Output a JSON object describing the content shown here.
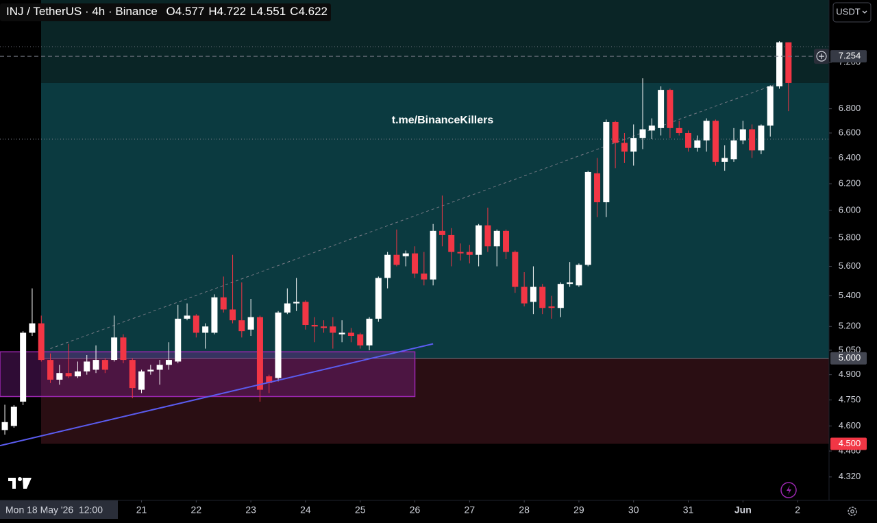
{
  "chart_data": {
    "type": "candlestick",
    "title": "INJ / TetherUS · 4h · Binance",
    "ohlc_legend": [
      {
        "label": "O",
        "value": 4.577
      },
      {
        "label": "H",
        "value": 4.722
      },
      {
        "label": "L",
        "value": 4.551
      },
      {
        "label": "C",
        "value": 4.622
      }
    ],
    "quote_button": "USDT",
    "watermark": "t.me/BinanceKillers",
    "crosshair_label": "Mon 18 May '26  12:00",
    "log_scale": true,
    "up_color": "#ffffff",
    "down_color": "#f23645",
    "xlim": [
      -0.53,
      90.45
    ],
    "ylim": [
      4.197,
      7.775
    ],
    "xticks": [
      {
        "value": 15,
        "label": "21"
      },
      {
        "value": 21,
        "label": "22"
      },
      {
        "value": 27,
        "label": "23"
      },
      {
        "value": 33,
        "label": "24"
      },
      {
        "value": 39,
        "label": "25"
      },
      {
        "value": 45,
        "label": "26"
      },
      {
        "value": 51,
        "label": "27"
      },
      {
        "value": 57,
        "label": "28"
      },
      {
        "value": 63,
        "label": "29"
      },
      {
        "value": 69,
        "label": "30"
      },
      {
        "value": 75,
        "label": "31"
      },
      {
        "value": 81,
        "label": "Jun"
      },
      {
        "value": 87,
        "label": "2"
      }
    ],
    "yticks": [
      {
        "value": 4.32,
        "label": "4.320"
      },
      {
        "value": 4.46,
        "label": "4.460"
      },
      {
        "value": 4.6,
        "label": "4.600"
      },
      {
        "value": 4.75,
        "label": "4.750"
      },
      {
        "value": 4.9,
        "label": "4.900"
      },
      {
        "value": 5.05,
        "label": "5.050"
      },
      {
        "value": 5.2,
        "label": "5.200"
      },
      {
        "value": 5.4,
        "label": "5.400"
      },
      {
        "value": 5.6,
        "label": "5.600"
      },
      {
        "value": 5.8,
        "label": "5.800"
      },
      {
        "value": 6.0,
        "label": "6.000"
      },
      {
        "value": 6.2,
        "label": "6.200"
      },
      {
        "value": 6.4,
        "label": "6.400"
      },
      {
        "value": 6.6,
        "label": "6.600"
      },
      {
        "value": 6.8,
        "label": "6.800"
      },
      {
        "value": 7.2,
        "label": "7.200"
      }
    ],
    "price_labels": [
      {
        "value": 7.254,
        "color": "#363a45"
      },
      {
        "value": 5.0,
        "label": "5.000",
        "color": "#434651"
      },
      {
        "value": 4.5,
        "label": "4.500",
        "color": "#f23645"
      }
    ],
    "zones": [
      {
        "top": 7.775,
        "bottom": 7.02,
        "color": "#0a2526"
      },
      {
        "top": 7.02,
        "bottom": 5.0,
        "color": "#0b3a40"
      },
      {
        "top": 5.0,
        "bottom": 4.5,
        "color": "#2a0e13"
      }
    ],
    "box": {
      "x": [
        -0.53,
        45
      ],
      "y": [
        4.77,
        5.04
      ]
    },
    "trendline": {
      "x": [
        -0.53,
        47
      ],
      "y": [
        4.49,
        5.09
      ]
    },
    "dashed_line": {
      "x": [
        5,
        85
      ],
      "y": [
        5.06,
        7.02
      ]
    },
    "hlines": [
      7.34,
      6.55
    ],
    "open": [
      4.577,
      4.6,
      4.74,
      5.16,
      5.22,
      4.99,
      4.87,
      4.91,
      4.89,
      4.92,
      4.93,
      4.99,
      4.99,
      5.13,
      4.99,
      4.81,
      4.92,
      4.93,
      4.96,
      4.98,
      5.25,
      5.27,
      5.16,
      5.16,
      5.39,
      5.31,
      5.24,
      5.18,
      5.26,
      4.89,
      4.88,
      5.29,
      5.35,
      5.36,
      5.21,
      5.2,
      5.2,
      5.15,
      5.16,
      5.15,
      5.08,
      5.25,
      5.52,
      5.68,
      5.67,
      5.69,
      5.55,
      5.51,
      5.85,
      5.82,
      5.7,
      5.7,
      5.68,
      5.89,
      5.74,
      5.85,
      5.7,
      5.46,
      5.36,
      5.46,
      5.33,
      5.32,
      5.48,
      5.47,
      5.61,
      6.28,
      6.06,
      6.69,
      6.52,
      6.45,
      6.56,
      6.62,
      6.64,
      6.96,
      6.64,
      6.6,
      6.48,
      6.54,
      6.7,
      6.37,
      6.39,
      6.54,
      6.63,
      6.46,
      6.66,
      6.99,
      7.38
    ],
    "high": [
      4.722,
      4.72,
      5.17,
      5.45,
      5.27,
      5.03,
      4.96,
      5.09,
      4.98,
      5.02,
      5.08,
      5.0,
      5.27,
      5.15,
      5.0,
      4.93,
      4.96,
      4.99,
      5.1,
      5.34,
      5.35,
      5.28,
      5.22,
      5.41,
      5.53,
      5.68,
      5.49,
      5.38,
      5.27,
      4.9,
      5.3,
      5.45,
      5.52,
      5.37,
      5.26,
      5.24,
      5.26,
      5.24,
      5.19,
      5.16,
      5.26,
      5.53,
      5.7,
      5.86,
      5.71,
      5.74,
      5.7,
      5.9,
      6.11,
      5.87,
      5.76,
      5.75,
      5.9,
      6.02,
      5.86,
      5.86,
      5.71,
      5.56,
      5.6,
      5.48,
      5.4,
      5.49,
      5.63,
      5.62,
      6.3,
      6.4,
      6.71,
      6.7,
      6.6,
      6.67,
      7.06,
      6.72,
      6.99,
      6.97,
      6.7,
      6.62,
      6.58,
      6.72,
      6.71,
      6.5,
      6.64,
      6.7,
      6.67,
      6.67,
      7.0,
      7.39,
      7.38
    ],
    "low": [
      4.551,
      4.59,
      4.72,
      5.14,
      4.98,
      4.85,
      4.84,
      4.88,
      4.88,
      4.9,
      4.91,
      4.91,
      4.98,
      4.97,
      4.76,
      4.79,
      4.9,
      4.84,
      4.93,
      4.97,
      5.24,
      5.13,
      5.06,
      5.15,
      5.29,
      5.22,
      5.13,
      5.14,
      4.74,
      4.79,
      4.86,
      5.28,
      5.3,
      5.18,
      5.1,
      5.16,
      5.06,
      5.1,
      5.1,
      5.06,
      5.05,
      5.23,
      5.45,
      5.6,
      5.6,
      5.52,
      5.47,
      5.47,
      5.74,
      5.6,
      5.64,
      5.62,
      5.6,
      5.7,
      5.6,
      5.65,
      5.42,
      5.33,
      5.28,
      5.28,
      5.25,
      5.26,
      5.46,
      5.46,
      5.6,
      5.95,
      5.95,
      6.32,
      6.36,
      6.34,
      6.47,
      6.55,
      6.58,
      6.56,
      6.58,
      6.45,
      6.45,
      6.45,
      6.34,
      6.3,
      6.37,
      6.51,
      6.4,
      6.43,
      6.57,
      6.97,
      6.78
    ],
    "close": [
      4.622,
      4.71,
      5.16,
      5.22,
      4.99,
      4.87,
      4.91,
      4.89,
      4.92,
      4.98,
      4.99,
      4.93,
      5.13,
      4.99,
      4.82,
      4.92,
      4.93,
      4.96,
      4.99,
      5.25,
      5.27,
      5.16,
      5.2,
      5.39,
      5.31,
      5.24,
      5.17,
      5.26,
      4.81,
      4.85,
      5.29,
      5.35,
      5.36,
      5.21,
      5.2,
      5.19,
      5.16,
      5.16,
      5.14,
      5.08,
      5.25,
      5.52,
      5.68,
      5.61,
      5.69,
      5.55,
      5.51,
      5.85,
      5.82,
      5.7,
      5.69,
      5.68,
      5.89,
      5.74,
      5.85,
      5.7,
      5.46,
      5.35,
      5.46,
      5.32,
      5.32,
      5.48,
      5.49,
      5.61,
      6.29,
      6.06,
      6.69,
      6.52,
      6.45,
      6.56,
      6.63,
      6.66,
      6.96,
      6.64,
      6.6,
      6.48,
      6.54,
      6.7,
      6.37,
      6.4,
      6.54,
      6.63,
      6.46,
      6.66,
      6.99,
      7.38,
      7.02
    ]
  }
}
